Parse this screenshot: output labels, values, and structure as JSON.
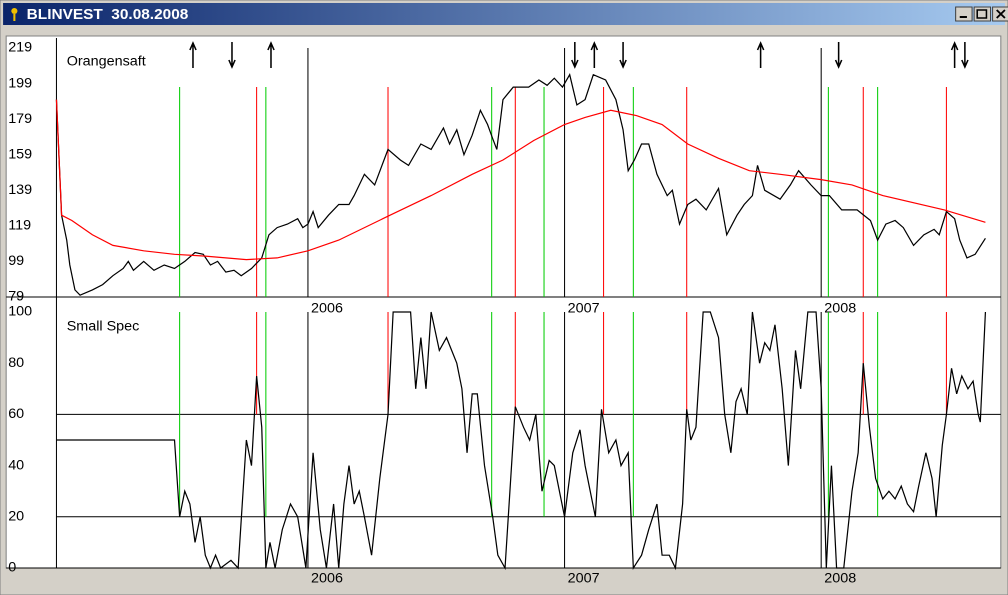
{
  "window": {
    "title": "BLINVEST  30.08.2008"
  },
  "signals": {
    "buy_color": "#00cc00",
    "sell_color": "#ff0000",
    "buy_lines": [
      2005.5,
      2005.836,
      2006.716,
      2006.92,
      2007.268,
      2008.028,
      2008.22
    ],
    "sell_lines": [
      2005.8,
      2006.312,
      2006.808,
      2007.152,
      2007.476,
      2008.164,
      2008.488
    ],
    "up_arrows": [
      2005.552,
      2005.856,
      2007.116,
      2007.764,
      2008.52
    ],
    "down_arrows": [
      2005.704,
      2007.04,
      2007.228,
      2008.068,
      2008.56
    ]
  },
  "chart_data": [
    {
      "type": "line",
      "title": "Orangensaft",
      "xlim": [
        2005.02,
        2008.7
      ],
      "xticks": [
        2006,
        2007,
        2008
      ],
      "ylim": [
        79,
        219
      ],
      "yticks": [
        79,
        99,
        119,
        139,
        159,
        179,
        199,
        219
      ],
      "series": [
        {
          "color": "#000000",
          "x": [
            2005.02,
            2005.04,
            2005.06,
            2005.072,
            2005.092,
            2005.112,
            2005.16,
            2005.2,
            2005.24,
            2005.28,
            2005.3,
            2005.32,
            2005.36,
            2005.4,
            2005.44,
            2005.48,
            2005.52,
            2005.56,
            2005.592,
            2005.62,
            2005.648,
            2005.68,
            2005.712,
            2005.74,
            2005.78,
            2005.82,
            2005.848,
            2005.88,
            2005.92,
            2005.96,
            2005.98,
            2006.0,
            2006.02,
            2006.04,
            2006.08,
            2006.12,
            2006.16,
            2006.18,
            2006.22,
            2006.26,
            2006.312,
            2006.36,
            2006.392,
            2006.44,
            2006.48,
            2006.528,
            2006.552,
            2006.58,
            2006.608,
            2006.64,
            2006.672,
            2006.7,
            2006.72,
            2006.736,
            2006.76,
            2006.8,
            2006.86,
            2006.9,
            2006.932,
            2006.96,
            2006.992,
            2007.02,
            2007.048,
            2007.08,
            2007.112,
            2007.16,
            2007.2,
            2007.228,
            2007.248,
            2007.272,
            2007.3,
            2007.328,
            2007.36,
            2007.4,
            2007.42,
            2007.448,
            2007.48,
            2007.512,
            2007.552,
            2007.6,
            2007.632,
            2007.672,
            2007.7,
            2007.732,
            2007.752,
            2007.78,
            2007.84,
            2007.88,
            2007.912,
            2007.96,
            2008.0,
            2008.032,
            2008.08,
            2008.14,
            2008.192,
            2008.22,
            2008.252,
            2008.288,
            2008.32,
            2008.36,
            2008.4,
            2008.44,
            2008.46,
            2008.488,
            2008.52,
            2008.54,
            2008.568,
            2008.6,
            2008.64
          ],
          "values": [
            190,
            125,
            111,
            97,
            83,
            80,
            83,
            86,
            91,
            95,
            99,
            94,
            99,
            94,
            97,
            95,
            99,
            104,
            103,
            97,
            99,
            93,
            94,
            91,
            95,
            101,
            114,
            118,
            120,
            123,
            118,
            120,
            127,
            118,
            125,
            131,
            131,
            136,
            148,
            142,
            162,
            156,
            153,
            165,
            162,
            174,
            165,
            173,
            159,
            170,
            184,
            176,
            168,
            162,
            190,
            197,
            197,
            201,
            198,
            202,
            197,
            204,
            187,
            190,
            204,
            201,
            190,
            173,
            150,
            156,
            165,
            165,
            148,
            136,
            139,
            120,
            131,
            134,
            128,
            140,
            114,
            125,
            131,
            136,
            153,
            139,
            134,
            142,
            150,
            142,
            136,
            136,
            128,
            128,
            122,
            111,
            120,
            122,
            118,
            108,
            114,
            117,
            114,
            127,
            123,
            111,
            101,
            103,
            112
          ]
        },
        {
          "color": "#ff0000",
          "x": [
            2005.02,
            2005.04,
            2005.08,
            2005.16,
            2005.24,
            2005.36,
            2005.48,
            2005.6,
            2005.76,
            2005.88,
            2006.0,
            2006.12,
            2006.32,
            2006.48,
            2006.64,
            2006.76,
            2006.88,
            2007.0,
            2007.08,
            2007.18,
            2007.28,
            2007.38,
            2007.48,
            2007.6,
            2007.72,
            2007.84,
            2008.0,
            2008.12,
            2008.24,
            2008.48,
            2008.64
          ],
          "values": [
            190,
            125,
            122,
            114,
            108,
            105,
            103,
            102,
            100,
            101,
            105,
            111,
            125,
            136,
            148,
            156,
            167,
            176,
            180,
            184,
            181,
            176,
            165,
            157,
            150,
            148,
            145,
            142,
            136,
            128,
            121
          ]
        }
      ]
    },
    {
      "type": "line",
      "title": "Small Spec",
      "xlim": [
        2005.02,
        2008.7
      ],
      "xticks": [
        2006,
        2007,
        2008
      ],
      "ylim": [
        0,
        100
      ],
      "yticks": [
        0,
        20,
        40,
        60,
        80,
        100
      ],
      "hlines": [
        20,
        60
      ],
      "series": [
        {
          "color": "#000000",
          "x": [
            2005.02,
            2005.48,
            2005.5,
            2005.52,
            2005.54,
            2005.56,
            2005.58,
            2005.6,
            2005.62,
            2005.64,
            2005.66,
            2005.7,
            2005.728,
            2005.76,
            2005.78,
            2005.8,
            2005.82,
            2005.836,
            2005.852,
            2005.872,
            2005.9,
            2005.932,
            2005.96,
            2005.992,
            2006.02,
            2006.048,
            2006.072,
            2006.1,
            2006.12,
            2006.14,
            2006.16,
            2006.18,
            2006.2,
            2006.22,
            2006.248,
            2006.28,
            2006.312,
            2006.332,
            2006.4,
            2006.42,
            2006.44,
            2006.46,
            2006.48,
            2006.512,
            2006.54,
            2006.56,
            2006.58,
            2006.6,
            2006.62,
            2006.64,
            2006.66,
            2006.688,
            2006.72,
            2006.74,
            2006.768,
            2006.808,
            2006.84,
            2006.864,
            2006.888,
            2006.912,
            2006.94,
            2006.96,
            2006.98,
            2007.0,
            2007.032,
            2007.06,
            2007.08,
            2007.1,
            2007.12,
            2007.144,
            2007.172,
            2007.2,
            2007.22,
            2007.248,
            2007.268,
            2007.3,
            2007.328,
            2007.36,
            2007.38,
            2007.408,
            2007.432,
            2007.46,
            2007.476,
            2007.492,
            2007.512,
            2007.54,
            2007.568,
            2007.6,
            2007.624,
            2007.648,
            2007.668,
            2007.688,
            2007.712,
            2007.732,
            2007.76,
            2007.78,
            2007.8,
            2007.82,
            2007.848,
            2007.872,
            2007.9,
            2007.92,
            2007.948,
            2007.98,
            2008.0,
            2008.02,
            2008.04,
            2008.06,
            2008.088,
            2008.12,
            2008.144,
            2008.164,
            2008.188,
            2008.212,
            2008.24,
            2008.264,
            2008.288,
            2008.312,
            2008.336,
            2008.36,
            2008.38,
            2008.408,
            2008.432,
            2008.448,
            2008.472,
            2008.488,
            2008.508,
            2008.528,
            2008.548,
            2008.572,
            2008.592,
            2008.612,
            2008.62,
            2008.64
          ],
          "values": [
            50,
            50,
            20,
            30,
            25,
            10,
            20,
            5,
            0,
            5,
            0,
            3,
            0,
            50,
            40,
            75,
            55,
            0,
            10,
            0,
            15,
            25,
            20,
            0,
            45,
            15,
            0,
            25,
            0,
            25,
            40,
            25,
            30,
            20,
            5,
            35,
            60,
            100,
            100,
            70,
            90,
            70,
            100,
            85,
            90,
            85,
            80,
            70,
            45,
            68,
            68,
            40,
            20,
            5,
            0,
            63,
            55,
            50,
            60,
            30,
            42,
            40,
            30,
            20,
            45,
            54,
            40,
            30,
            20,
            62,
            45,
            50,
            40,
            45,
            0,
            5,
            15,
            25,
            5,
            5,
            0,
            25,
            62,
            50,
            55,
            100,
            100,
            90,
            60,
            45,
            65,
            70,
            60,
            100,
            80,
            88,
            85,
            95,
            70,
            40,
            85,
            70,
            100,
            100,
            70,
            0,
            40,
            0,
            0,
            30,
            45,
            80,
            55,
            35,
            27,
            30,
            27,
            32,
            25,
            22,
            32,
            45,
            35,
            20,
            48,
            60,
            78,
            68,
            75,
            70,
            73,
            60,
            57,
            100
          ]
        }
      ]
    }
  ]
}
